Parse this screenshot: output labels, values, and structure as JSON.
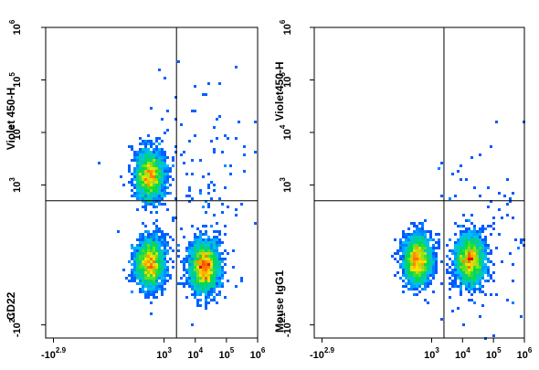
{
  "chart_data": [
    {
      "type": "scatter",
      "subtype": "flow-cytometry-density-plot",
      "title": "",
      "xlabel": "",
      "ylabel_top": "Violet 450-H",
      "ylabel_bottom": "CD22",
      "x_scale": "biexponential",
      "y_scale": "biexponential",
      "x_ticks": [
        {
          "label_base": "-10",
          "label_exp": "2.9",
          "value": -794
        },
        {
          "label_base": "10",
          "label_exp": "3",
          "value": 1000
        },
        {
          "label_base": "10",
          "label_exp": "4",
          "value": 10000
        },
        {
          "label_base": "10",
          "label_exp": "5",
          "value": 100000
        },
        {
          "label_base": "10",
          "label_exp": "6",
          "value": 1000000
        }
      ],
      "y_ticks": [
        {
          "label_base": "-10",
          "label_exp": "2.1",
          "value": -126
        },
        {
          "label_base": "10",
          "label_exp": "3",
          "value": 1000
        },
        {
          "label_base": "10",
          "label_exp": "4",
          "value": 10000
        },
        {
          "label_base": "10",
          "label_exp": "5",
          "value": 100000
        },
        {
          "label_base": "10",
          "label_exp": "6",
          "value": 1000000
        }
      ],
      "grid": false,
      "quadrant_gate": {
        "x": 2500,
        "y": 500
      },
      "populations": [
        {
          "center_x": 350,
          "center_y": 1500,
          "relative_density": 0.8
        },
        {
          "center_x": 350,
          "center_y": 50,
          "relative_density": 0.85
        },
        {
          "center_x": 20000,
          "center_y": 40,
          "relative_density": 1.0
        },
        {
          "center_x": 15000,
          "center_y": 800,
          "relative_density": 0.06
        }
      ]
    },
    {
      "type": "scatter",
      "subtype": "flow-cytometry-density-plot",
      "title": "",
      "xlabel": "",
      "ylabel_top": "Violet450-H",
      "ylabel_bottom": "Mouse IgG1",
      "x_scale": "biexponential",
      "y_scale": "biexponential",
      "x_ticks": [
        {
          "label_base": "-10",
          "label_exp": "2.9",
          "value": -794
        },
        {
          "label_base": "10",
          "label_exp": "3",
          "value": 1000
        },
        {
          "label_base": "10",
          "label_exp": "4",
          "value": 10000
        },
        {
          "label_base": "10",
          "label_exp": "5",
          "value": 100000
        },
        {
          "label_base": "10",
          "label_exp": "6",
          "value": 1000000
        }
      ],
      "y_ticks": [
        {
          "label_base": "-10",
          "label_exp": "2.1",
          "value": -126
        },
        {
          "label_base": "10",
          "label_exp": "3",
          "value": 1000
        },
        {
          "label_base": "10",
          "label_exp": "4",
          "value": 10000
        },
        {
          "label_base": "10",
          "label_exp": "5",
          "value": 100000
        },
        {
          "label_base": "10",
          "label_exp": "6",
          "value": 1000000
        }
      ],
      "grid": false,
      "quadrant_gate": {
        "x": 2500,
        "y": 500
      },
      "populations": [
        {
          "center_x": 350,
          "center_y": 60,
          "relative_density": 1.0
        },
        {
          "center_x": 18000,
          "center_y": 60,
          "relative_density": 1.0
        },
        {
          "center_x": 60000,
          "center_y": 100,
          "relative_density": 0.05
        }
      ]
    }
  ]
}
